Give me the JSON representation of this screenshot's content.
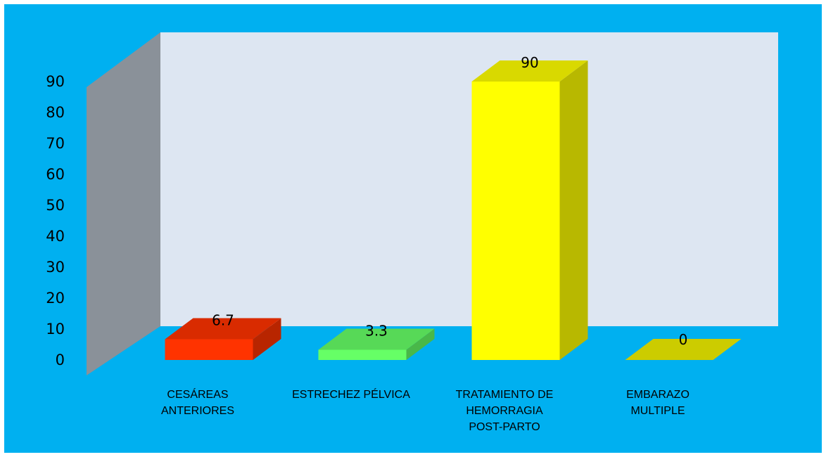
{
  "chart_data": {
    "type": "bar",
    "style": "3d-column",
    "categories": [
      [
        "CESÁREAS",
        "ANTERIORES"
      ],
      [
        "ESTRECHEZ PÉLVICA"
      ],
      [
        "TRATAMIENTO DE",
        "HEMORRAGIA",
        "POST-PARTO"
      ],
      [
        "EMBARAZO",
        "MULTIPLE"
      ]
    ],
    "values": [
      6.7,
      3.3,
      90,
      0
    ],
    "data_labels": [
      "6.7",
      "3.3",
      "90",
      "0"
    ],
    "bar_colors": [
      "#ff3300",
      "#66ff66",
      "#ffff00",
      "#cccc00"
    ],
    "ylim": [
      0,
      90
    ],
    "yticks": [
      0,
      10,
      20,
      30,
      40,
      50,
      60,
      70,
      80,
      90
    ],
    "title": "",
    "xlabel": "",
    "ylabel": "",
    "grid": false,
    "legend": "none",
    "colors": {
      "background": "#00b0f0",
      "back_wall": "#dde6f2",
      "side_wall": "#8a9199",
      "floor": "#00b0f0"
    }
  }
}
